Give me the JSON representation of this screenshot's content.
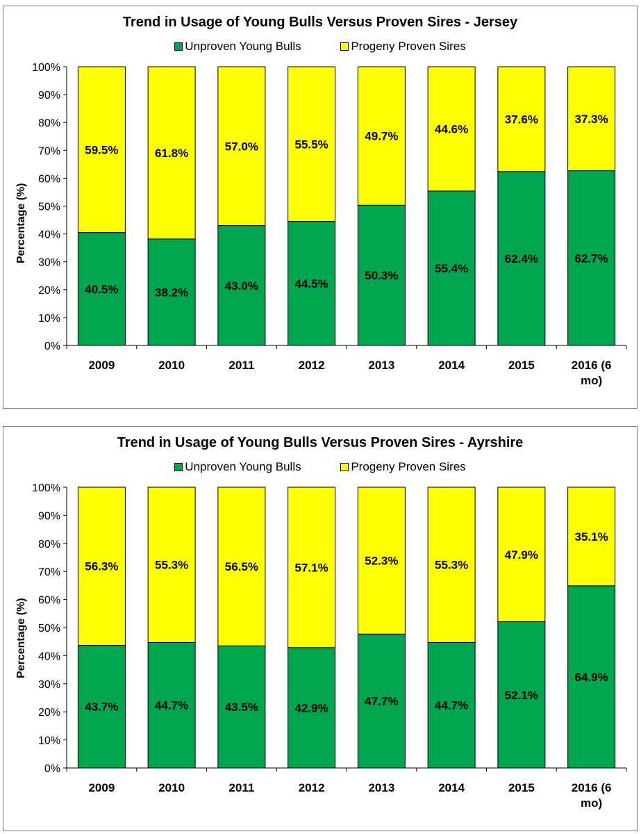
{
  "chart_data": [
    {
      "type": "bar",
      "stacked": true,
      "title": "Trend in Usage of Young Bulls Versus Proven Sires - Jersey",
      "ylabel": "Percentage (%)",
      "xlabel": "",
      "ylim": [
        0,
        100
      ],
      "yticks": [
        "0%",
        "10%",
        "20%",
        "30%",
        "40%",
        "50%",
        "60%",
        "70%",
        "80%",
        "90%",
        "100%"
      ],
      "legend_position": "top",
      "grid": false,
      "categories": [
        "2009",
        "2010",
        "2011",
        "2012",
        "2013",
        "2014",
        "2015",
        "2016 (6 mo)"
      ],
      "series": [
        {
          "name": "Unproven Young Bulls",
          "color": "#00a550",
          "values": [
            40.5,
            38.2,
            43.0,
            44.5,
            50.3,
            55.4,
            62.4,
            62.7
          ],
          "labels": [
            "40.5%",
            "38.2%",
            "43.0%",
            "44.5%",
            "50.3%",
            "55.4%",
            "62.4%",
            "62.7%"
          ]
        },
        {
          "name": "Progeny Proven Sires",
          "color": "#ffff00",
          "values": [
            59.5,
            61.8,
            57.0,
            55.5,
            49.7,
            44.6,
            37.6,
            37.3
          ],
          "labels": [
            "59.5%",
            "61.8%",
            "57.0%",
            "55.5%",
            "49.7%",
            "44.6%",
            "37.6%",
            "37.3%"
          ]
        }
      ]
    },
    {
      "type": "bar",
      "stacked": true,
      "title": "Trend in Usage of Young Bulls Versus Proven Sires - Ayrshire",
      "ylabel": "Percentage (%)",
      "xlabel": "",
      "ylim": [
        0,
        100
      ],
      "yticks": [
        "0%",
        "10%",
        "20%",
        "30%",
        "40%",
        "50%",
        "60%",
        "70%",
        "80%",
        "90%",
        "100%"
      ],
      "legend_position": "top",
      "grid": false,
      "categories": [
        "2009",
        "2010",
        "2011",
        "2012",
        "2013",
        "2014",
        "2015",
        "2016 (6 mo)"
      ],
      "series": [
        {
          "name": "Unproven Young Bulls",
          "color": "#00a550",
          "values": [
            43.7,
            44.7,
            43.5,
            42.9,
            47.7,
            44.7,
            52.1,
            64.9
          ],
          "labels": [
            "43.7%",
            "44.7%",
            "43.5%",
            "42.9%",
            "47.7%",
            "44.7%",
            "52.1%",
            "64.9%"
          ]
        },
        {
          "name": "Progeny Proven Sires",
          "color": "#ffff00",
          "values": [
            56.3,
            55.3,
            56.5,
            57.1,
            52.3,
            55.3,
            47.9,
            35.1
          ],
          "labels": [
            "56.3%",
            "55.3%",
            "56.5%",
            "57.1%",
            "52.3%",
            "55.3%",
            "47.9%",
            "35.1%"
          ]
        }
      ]
    }
  ]
}
